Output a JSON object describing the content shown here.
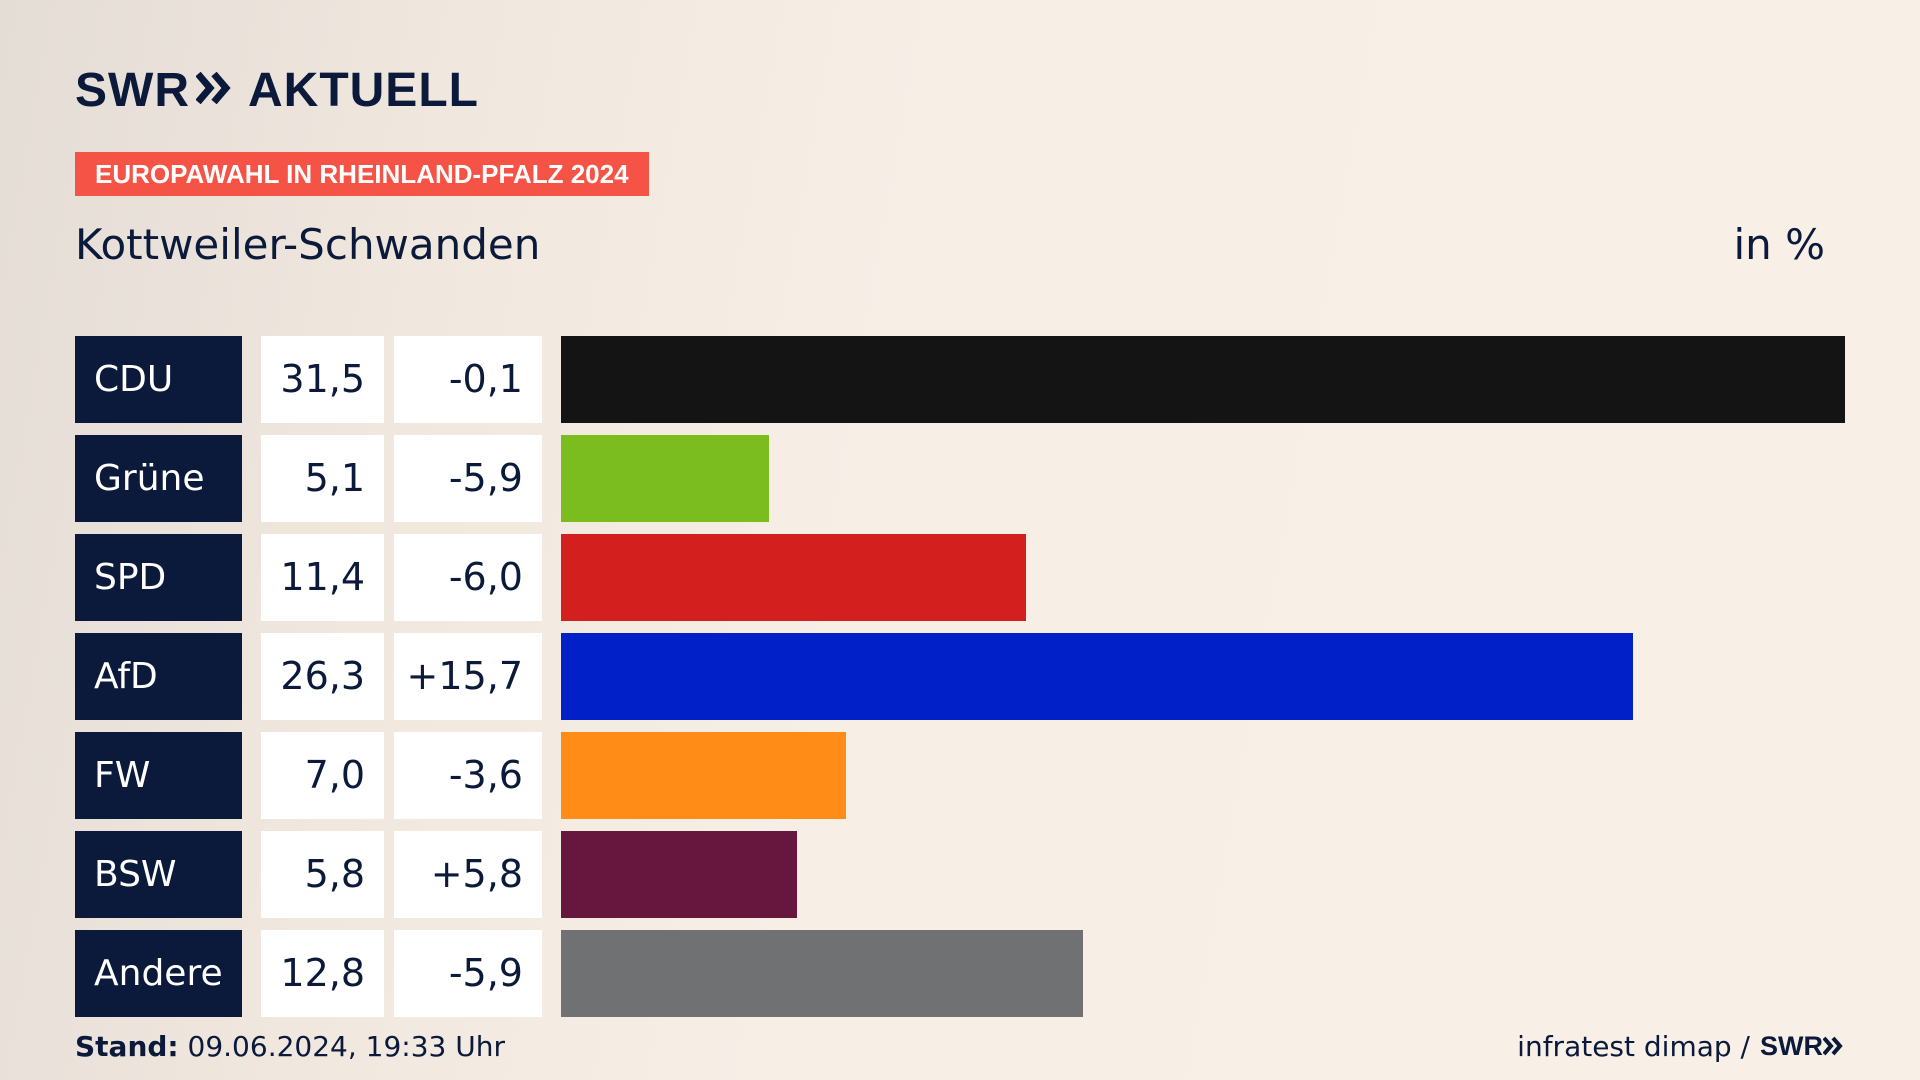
{
  "header": {
    "logo_text": "SWR",
    "logo_brand": "AKTUELL",
    "tag": "EUROPAWAHL IN RHEINLAND-PFALZ 2024",
    "region": "Kottweiler-Schwanden",
    "unit": "in %"
  },
  "footer": {
    "stand_label": "Stand:",
    "stand_value": "09.06.2024, 19:33 Uhr",
    "source": "infratest dimap /",
    "source_logo": "SWR"
  },
  "colors": {
    "navy": "#0b1a3a",
    "tag": "#f55345"
  },
  "chart_data": {
    "type": "bar",
    "title": "Kottweiler-Schwanden",
    "unit": "in %",
    "max": 31.5,
    "categories": [
      "CDU",
      "Grüne",
      "SPD",
      "AfD",
      "FW",
      "BSW",
      "Andere"
    ],
    "values": [
      31.5,
      5.1,
      11.4,
      26.3,
      7.0,
      5.8,
      12.8
    ],
    "value_labels": [
      "31,5",
      "5,1",
      "11,4",
      "26,3",
      "7,0",
      "5,8",
      "12,8"
    ],
    "diff_labels": [
      "-0,1",
      "-5,9",
      "-6,0",
      "+15,7",
      "-3,6",
      "+5,8",
      "-5,9"
    ],
    "bar_colors": [
      "#141414",
      "#7bbd1e",
      "#d41f1f",
      "#0220c8",
      "#ff8c17",
      "#67173e",
      "#707173"
    ]
  }
}
